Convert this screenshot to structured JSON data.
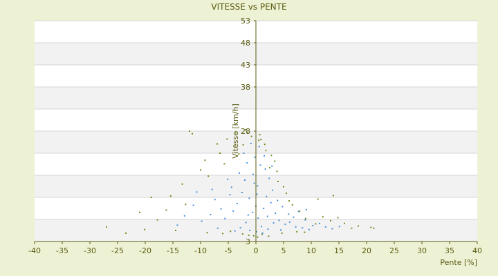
{
  "chart_data": {
    "type": "scatter",
    "title": "VITESSE vs PENTE",
    "xlabel": "Pente [%]",
    "ylabel": "Vitesse [km/h]",
    "xlim": [
      -40,
      40
    ],
    "ylim": [
      3,
      53
    ],
    "x_ticks": [
      "-40",
      "-35",
      "-30",
      "-25",
      "-20",
      "-15",
      "-10",
      "-5",
      "0",
      "5",
      "10",
      "15",
      "20",
      "25",
      "30",
      "35",
      "40"
    ],
    "y_ticks": [
      "53",
      "48",
      "43",
      "38",
      "28",
      "3"
    ],
    "grid": true,
    "background_bands": [
      "#ffffff",
      "#f2f2f2"
    ],
    "series": [
      {
        "color": "#4a90d9",
        "points": [
          [
            -0.5,
            18.2
          ],
          [
            0.3,
            15.6
          ],
          [
            -1.2,
            12.8
          ],
          [
            1.4,
            10.5
          ],
          [
            2.1,
            8.7
          ],
          [
            -2.5,
            14.1
          ],
          [
            0.8,
            20.3
          ],
          [
            -0.2,
            22.1
          ],
          [
            1.9,
            13.2
          ],
          [
            3.5,
            9.4
          ],
          [
            4.2,
            7.8
          ],
          [
            -3.4,
            11.6
          ],
          [
            -4.1,
            9.9
          ],
          [
            5.3,
            6.9
          ],
          [
            6.1,
            7.4
          ],
          [
            7.2,
            6.3
          ],
          [
            -5.6,
            8.2
          ],
          [
            -6.3,
            10.4
          ],
          [
            0.1,
            5.2
          ],
          [
            1.2,
            4.9
          ],
          [
            -1.1,
            5.5
          ],
          [
            2.7,
            11.8
          ],
          [
            -2.0,
            16.9
          ],
          [
            3.0,
            14.6
          ],
          [
            -7.4,
            12.5
          ],
          [
            -8.2,
            9.1
          ],
          [
            8.4,
            6.1
          ],
          [
            9.6,
            5.7
          ],
          [
            -9.8,
            7.6
          ],
          [
            10.3,
            6.6
          ],
          [
            -10.7,
            14.2
          ],
          [
            11.5,
            7.1
          ],
          [
            12.6,
            6.3
          ],
          [
            -12.9,
            8.8
          ],
          [
            13.8,
            5.9
          ],
          [
            -14.2,
            6.7
          ],
          [
            15.1,
            6.4
          ],
          [
            -11.3,
            11.2
          ],
          [
            0.6,
            24.5
          ],
          [
            -0.9,
            25.2
          ],
          [
            1.7,
            19.4
          ],
          [
            2.4,
            17.3
          ],
          [
            -1.6,
            20.8
          ],
          [
            -3.0,
            18.5
          ],
          [
            3.9,
            12.3
          ],
          [
            4.8,
            10.9
          ],
          [
            -4.7,
            13.6
          ],
          [
            5.9,
            9.2
          ],
          [
            0.0,
            11.0
          ],
          [
            0.4,
            8.3
          ],
          [
            -0.6,
            9.6
          ],
          [
            1.0,
            6.4
          ],
          [
            -1.8,
            7.3
          ],
          [
            2.2,
            5.8
          ],
          [
            6.8,
            8.5
          ],
          [
            7.7,
            9.8
          ],
          [
            -2.8,
            6.1
          ],
          [
            -3.8,
            5.4
          ],
          [
            8.9,
            7.9
          ],
          [
            -6.9,
            6.0
          ],
          [
            3.2,
            7.2
          ],
          [
            4.5,
            5.6
          ],
          [
            -5.1,
            17.1
          ],
          [
            -4.4,
            15.3
          ],
          [
            -7.9,
            14.8
          ],
          [
            9.1,
            10.2
          ],
          [
            0.2,
            13.7
          ],
          [
            -0.3,
            16.2
          ],
          [
            1.5,
            22.4
          ],
          [
            -2.2,
            23.0
          ],
          [
            2.9,
            20.1
          ],
          [
            -1.4,
            9.0
          ]
        ]
      },
      {
        "color": "#6b8e1a",
        "points": [
          [
            -12.0,
            28.0
          ],
          [
            -11.5,
            27.4
          ],
          [
            -0.8,
            26.8
          ],
          [
            0.5,
            25.9
          ],
          [
            -4.0,
            24.6
          ],
          [
            -6.5,
            23.0
          ],
          [
            -9.2,
            21.4
          ],
          [
            1.8,
            23.6
          ],
          [
            3.4,
            21.2
          ],
          [
            -27.0,
            6.3
          ],
          [
            -23.5,
            4.9
          ],
          [
            -20.1,
            5.7
          ],
          [
            -17.8,
            7.9
          ],
          [
            -16.2,
            10.1
          ],
          [
            -21.0,
            9.6
          ],
          [
            -13.3,
            16.0
          ],
          [
            -10.0,
            19.2
          ],
          [
            -8.6,
            17.8
          ],
          [
            -5.7,
            20.6
          ],
          [
            -3.1,
            22.8
          ],
          [
            -2.3,
            24.9
          ],
          [
            -1.5,
            27.6
          ],
          [
            0.9,
            26.1
          ],
          [
            2.5,
            19.7
          ],
          [
            4.0,
            16.6
          ],
          [
            5.5,
            13.9
          ],
          [
            6.6,
            11.3
          ],
          [
            7.9,
            9.9
          ],
          [
            9.0,
            8.2
          ],
          [
            10.8,
            7.0
          ],
          [
            12.1,
            8.6
          ],
          [
            13.5,
            7.7
          ],
          [
            14.8,
            8.4
          ],
          [
            16.0,
            7.1
          ],
          [
            17.3,
            6.0
          ],
          [
            18.5,
            6.5
          ],
          [
            20.8,
            6.2
          ],
          [
            21.3,
            6.0
          ],
          [
            -14.5,
            5.5
          ],
          [
            -15.4,
            13.3
          ],
          [
            -18.9,
            13.0
          ],
          [
            -12.7,
            11.4
          ],
          [
            11.2,
            12.6
          ],
          [
            14.0,
            13.4
          ],
          [
            -7.0,
            25.1
          ],
          [
            -5.2,
            26.2
          ],
          [
            -3.6,
            27.9
          ],
          [
            -1.9,
            28.3
          ],
          [
            0.7,
            27.2
          ],
          [
            1.6,
            25.0
          ],
          [
            2.8,
            22.5
          ],
          [
            3.8,
            18.9
          ],
          [
            5.0,
            15.4
          ],
          [
            6.0,
            12.2
          ],
          [
            -0.4,
            4.3
          ],
          [
            0.3,
            4.0
          ],
          [
            1.1,
            4.6
          ],
          [
            -1.3,
            4.4
          ],
          [
            -2.4,
            4.7
          ],
          [
            2.3,
            4.2
          ],
          [
            -6.0,
            4.8
          ],
          [
            -4.6,
            5.3
          ],
          [
            4.7,
            4.9
          ],
          [
            7.4,
            5.2
          ],
          [
            8.8,
            5.1
          ],
          [
            -8.8,
            5.0
          ]
        ]
      }
    ]
  }
}
